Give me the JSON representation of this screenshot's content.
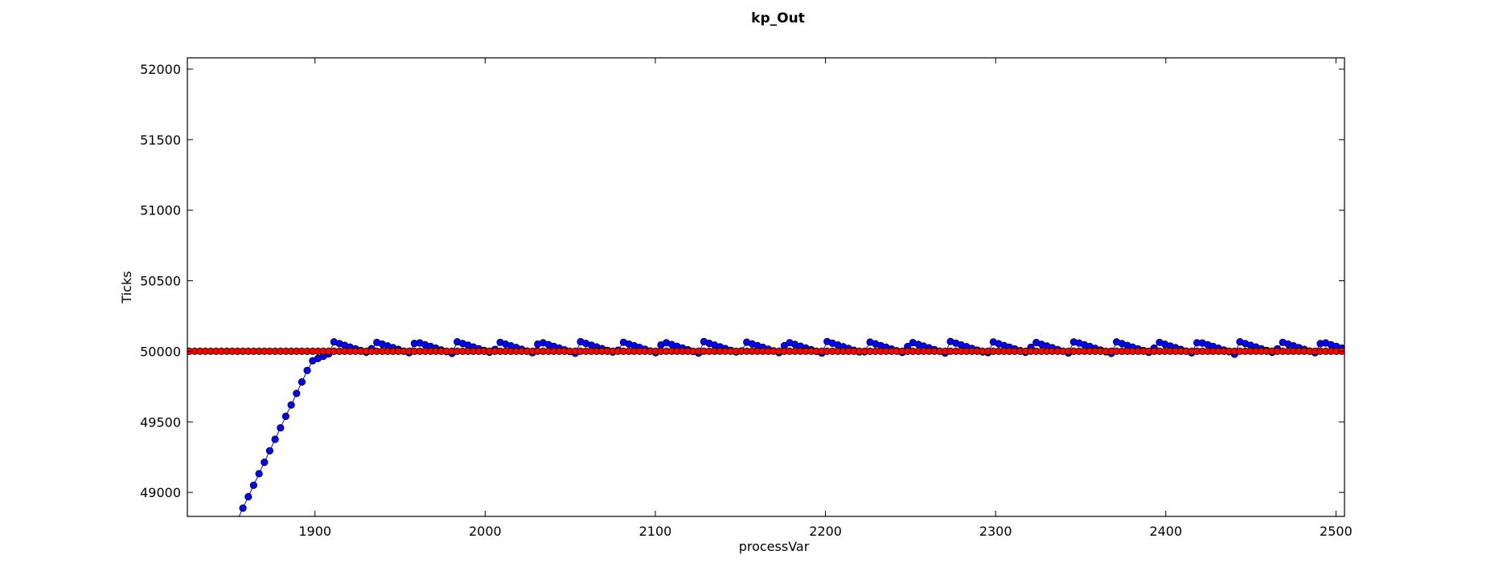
{
  "chart_data": {
    "type": "line",
    "title": "kp_Out",
    "xlabel": "processVar",
    "ylabel": "Ticks",
    "xlim": [
      1825,
      2505
    ],
    "ylim": [
      48830,
      52080
    ],
    "xticks": [
      1900,
      2000,
      2100,
      2200,
      2300,
      2400,
      2500
    ],
    "yticks": [
      49000,
      49500,
      50000,
      50500,
      51000,
      51500,
      52000
    ],
    "grid": false,
    "colors": {
      "measured": "#0000ff",
      "setpoint": "#ff0000",
      "frame": "#000000"
    },
    "sampling": {
      "x_start": 1823,
      "x_end": 2504,
      "step": 3.15
    },
    "series": [
      {
        "role": "measured",
        "marker": "o",
        "ramp": {
          "start": [
            1855,
            48820
          ],
          "end": [
            1898,
            49930
          ]
        },
        "settle": {
          "x": 1908,
          "y": 49980
        },
        "sawtooth": {
          "period": 24.2,
          "amplitude_peak": 50070,
          "amplitude_trough": 49985
        }
      },
      {
        "role": "setpoint",
        "marker": "o",
        "constant": 50000
      }
    ]
  }
}
